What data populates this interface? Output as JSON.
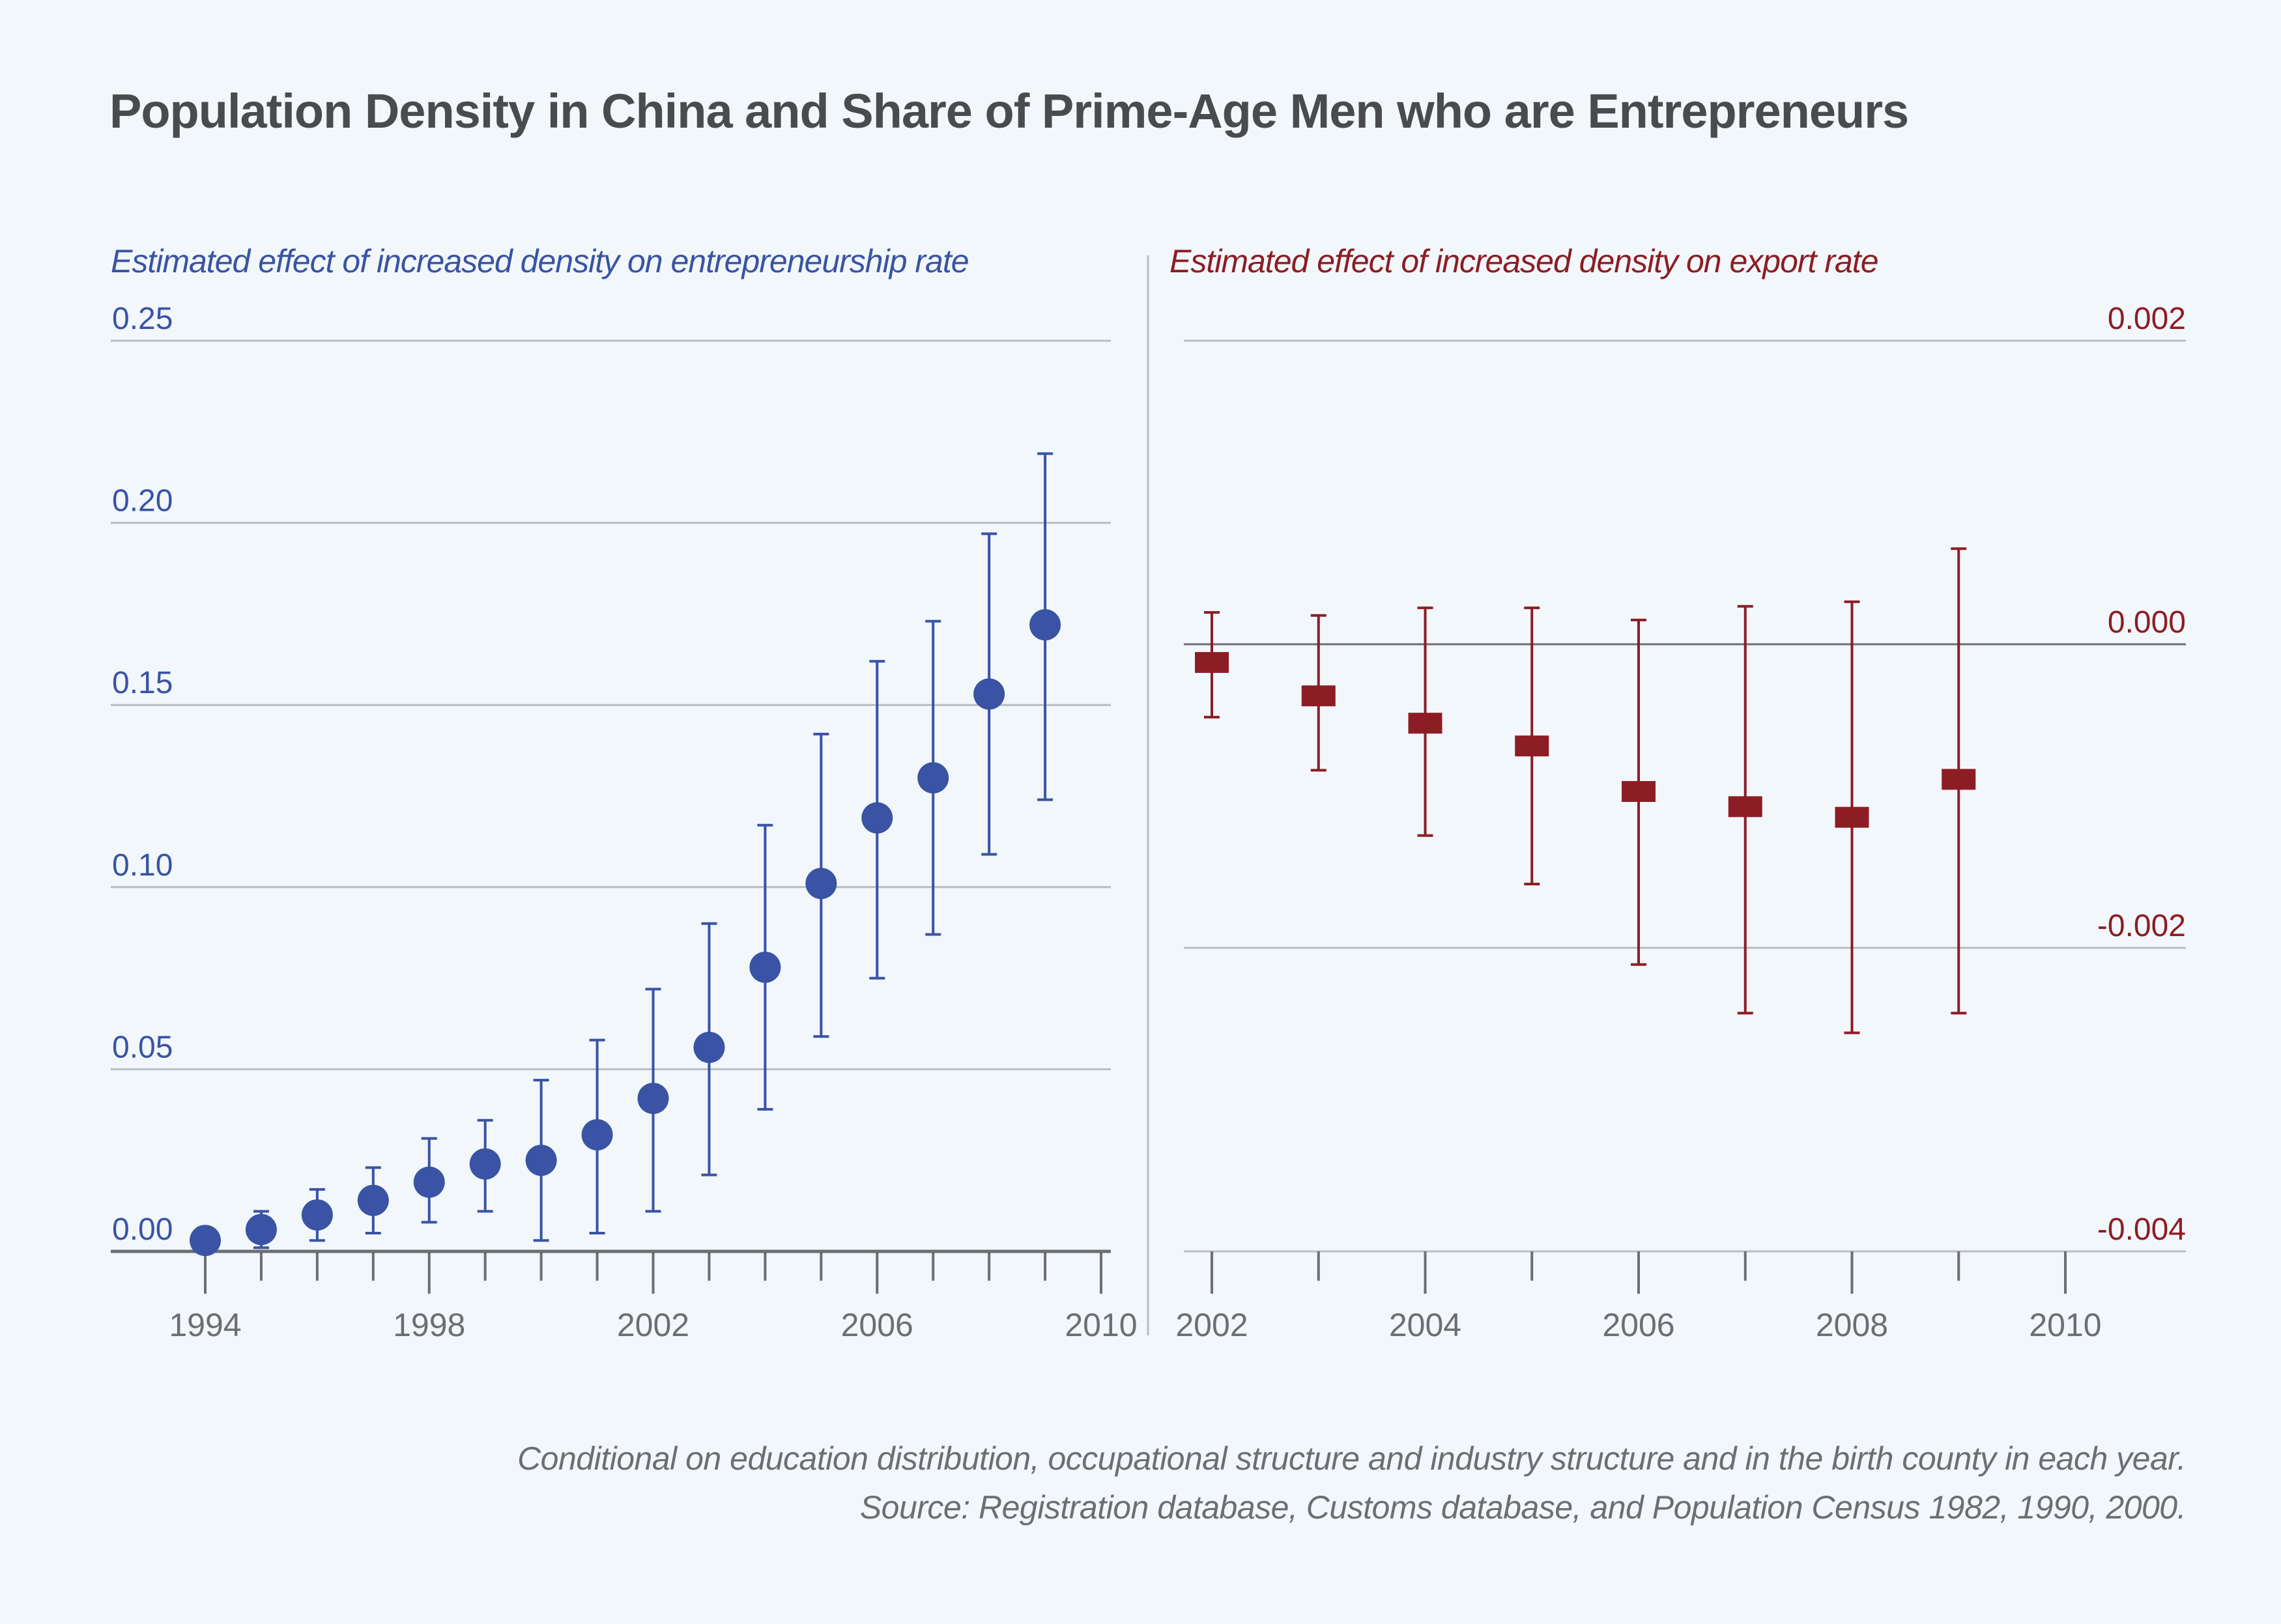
{
  "title": "Population Density in China and Share of Prime-Age Men who are Entrepreneurs",
  "colors": {
    "background": "#f2f7fb",
    "title": "#4a4b4d",
    "left_series": "#3a53a4",
    "right_series": "#8d1d24",
    "grid": "#b9bcc0",
    "axis": "#6d6e71"
  },
  "footnote": {
    "line1": "Conditional on education distribution, occupational structure and industry structure and in the birth county in each year.",
    "line2": "Source: Registration database, Customs database, and Population Census 1982, 1990, 2000."
  },
  "chart_data": [
    {
      "type": "scatter",
      "subtitle": "Estimated effect of increased density on entrepreneurship rate",
      "marker": "circle",
      "error_bars": true,
      "x": [
        1994,
        1995,
        1996,
        1997,
        1998,
        1999,
        2000,
        2001,
        2002,
        2003,
        2004,
        2005,
        2006,
        2007,
        2008,
        2009
      ],
      "y": [
        0.003,
        0.006,
        0.01,
        0.014,
        0.019,
        0.024,
        0.025,
        0.032,
        0.042,
        0.056,
        0.078,
        0.101,
        0.119,
        0.13,
        0.153,
        0.172
      ],
      "ci_upper": [
        null,
        0.011,
        0.017,
        0.023,
        0.031,
        0.036,
        0.047,
        0.058,
        0.072,
        0.09,
        0.117,
        0.142,
        0.162,
        0.173,
        0.197,
        0.219
      ],
      "ci_lower": [
        null,
        0.001,
        0.003,
        0.005,
        0.008,
        0.011,
        0.003,
        0.005,
        0.011,
        0.021,
        0.039,
        0.059,
        0.075,
        0.087,
        0.109,
        0.124
      ],
      "xlim": [
        1993,
        2010
      ],
      "ylim": [
        0.0,
        0.25
      ],
      "x_ticks_major": [
        1994,
        1998,
        2002,
        2006,
        2010
      ],
      "x_tick_labels": [
        "1994",
        "1998",
        "2002",
        "2006",
        "2010"
      ],
      "y_ticks": [
        0.0,
        0.05,
        0.1,
        0.15,
        0.2,
        0.25
      ],
      "y_tick_labels": [
        "0.00",
        "0.05",
        "0.10",
        "0.15",
        "0.20",
        "0.25"
      ],
      "y_axis_side": "left",
      "grid": true
    },
    {
      "type": "scatter",
      "subtitle": "Estimated effect of increased density on export rate",
      "marker": "square",
      "error_bars": true,
      "x": [
        2002,
        2003,
        2004,
        2005,
        2006,
        2007,
        2008,
        2009
      ],
      "y": [
        -0.00012,
        -0.00034,
        -0.00052,
        -0.00067,
        -0.00097,
        -0.00107,
        -0.00114,
        -0.00089
      ],
      "ci_upper": [
        0.00021,
        0.00019,
        0.00024,
        0.00024,
        0.00016,
        0.00025,
        0.00028,
        0.00063
      ],
      "ci_lower": [
        -0.00048,
        -0.00083,
        -0.00126,
        -0.00158,
        -0.00211,
        -0.00243,
        -0.00256,
        -0.00243
      ],
      "xlim": [
        2001.7,
        2010.9
      ],
      "ylim": [
        -0.004,
        0.002
      ],
      "x_ticks_major": [
        2002,
        2004,
        2006,
        2008,
        2010
      ],
      "x_tick_labels": [
        "2002",
        "2004",
        "2006",
        "2008",
        "2010"
      ],
      "y_ticks": [
        -0.004,
        -0.002,
        0.0,
        0.002
      ],
      "y_tick_labels": [
        "-0.004",
        "-0.002",
        "0.000",
        "0.002"
      ],
      "y_axis_side": "right",
      "zero_line": true,
      "grid": true
    }
  ]
}
